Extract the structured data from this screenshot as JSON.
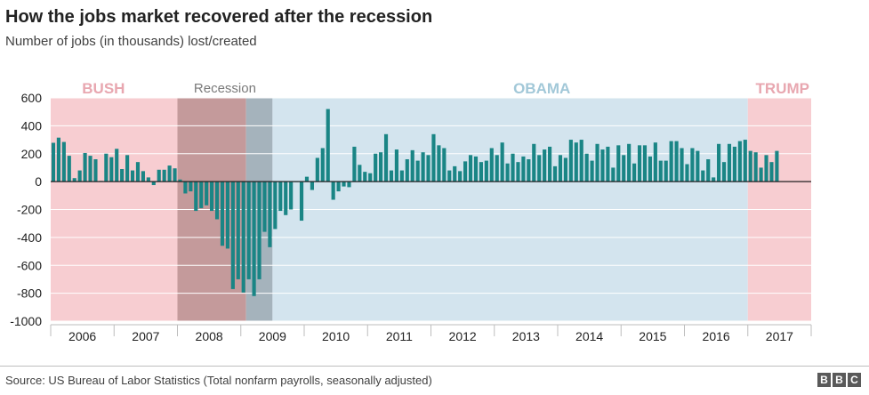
{
  "title": "How the jobs market recovered after the recession",
  "subtitle": "Number of jobs (in thousands) lost/created",
  "source": "Source: US Bureau of Labor Statistics (Total nonfarm payrolls, seasonally adjusted)",
  "logo": [
    "B",
    "B",
    "C"
  ],
  "colors": {
    "bar": "#1a8585",
    "bush": "#f7cdd1",
    "bush_label": "#e8a7b0",
    "recession_bush": "#c49a9b",
    "recession_obama": "#a5b3bc",
    "recession_label": "#7a7a7a",
    "obama": "#d3e4ee",
    "obama_label": "#a2c8d8",
    "trump": "#f7cdd1",
    "trump_label": "#e8a7b0"
  },
  "chart_data": {
    "type": "bar",
    "title": "How the jobs market recovered after the recession",
    "subtitle": "Number of jobs (in thousands) lost/created",
    "xlabel": "",
    "ylabel": "",
    "ylim": [
      -1000,
      600
    ],
    "yticks": [
      600,
      400,
      200,
      0,
      -200,
      -400,
      -600,
      -800,
      -1000
    ],
    "ytick_labels": [
      "600",
      "400",
      "200",
      "0",
      "-200",
      "-400",
      "-600",
      "-800",
      "-1000"
    ],
    "x_start": "2006-01",
    "x_end": "2017-12",
    "years": [
      "2006",
      "2007",
      "2008",
      "2009",
      "2010",
      "2011",
      "2012",
      "2013",
      "2014",
      "2015",
      "2016",
      "2017"
    ],
    "periods": [
      {
        "key": "bush",
        "label": "BUSH",
        "start": "2006-01",
        "end": "2007-12",
        "color": "#f7cdd1"
      },
      {
        "key": "recession_bush",
        "label": "",
        "start": "2008-01",
        "end": "2009-01",
        "color": "#c49a9b"
      },
      {
        "key": "recession_obama",
        "label": "",
        "start": "2009-02",
        "end": "2009-06",
        "color": "#a5b3bc"
      },
      {
        "key": "obama",
        "label": "OBAMA",
        "start": "2009-07",
        "end": "2016-12",
        "color": "#d3e4ee"
      },
      {
        "key": "trump",
        "label": "TRUMP",
        "start": "2017-01",
        "end": "2017-12",
        "color": "#f7cdd1"
      }
    ],
    "recession_label": "Recession",
    "series": [
      {
        "name": "Total nonfarm payrolls change (thousands)",
        "start": "2006-01",
        "values": [
          278,
          315,
          284,
          185,
          25,
          80,
          205,
          185,
          160,
          5,
          200,
          175,
          235,
          90,
          190,
          80,
          140,
          75,
          30,
          -25,
          85,
          85,
          115,
          95,
          15,
          -85,
          -70,
          -210,
          -190,
          -170,
          -210,
          -270,
          -460,
          -480,
          -770,
          -700,
          -795,
          -700,
          -820,
          -700,
          -360,
          -470,
          -340,
          -210,
          -240,
          -200,
          0,
          -280,
          35,
          -60,
          170,
          240,
          520,
          -130,
          -70,
          -35,
          -40,
          250,
          120,
          70,
          60,
          200,
          210,
          340,
          80,
          230,
          80,
          160,
          225,
          150,
          210,
          190,
          340,
          260,
          240,
          80,
          110,
          75,
          145,
          190,
          180,
          140,
          150,
          240,
          190,
          280,
          130,
          200,
          140,
          180,
          160,
          270,
          190,
          230,
          250,
          110,
          190,
          170,
          300,
          280,
          300,
          200,
          150,
          270,
          230,
          250,
          100,
          260,
          190,
          270,
          130,
          260,
          260,
          180,
          280,
          150,
          150,
          290,
          290,
          240,
          125,
          240,
          220,
          80,
          160,
          30,
          270,
          140,
          270,
          250,
          290,
          300,
          220,
          210,
          100,
          190,
          140,
          220
        ]
      }
    ]
  }
}
